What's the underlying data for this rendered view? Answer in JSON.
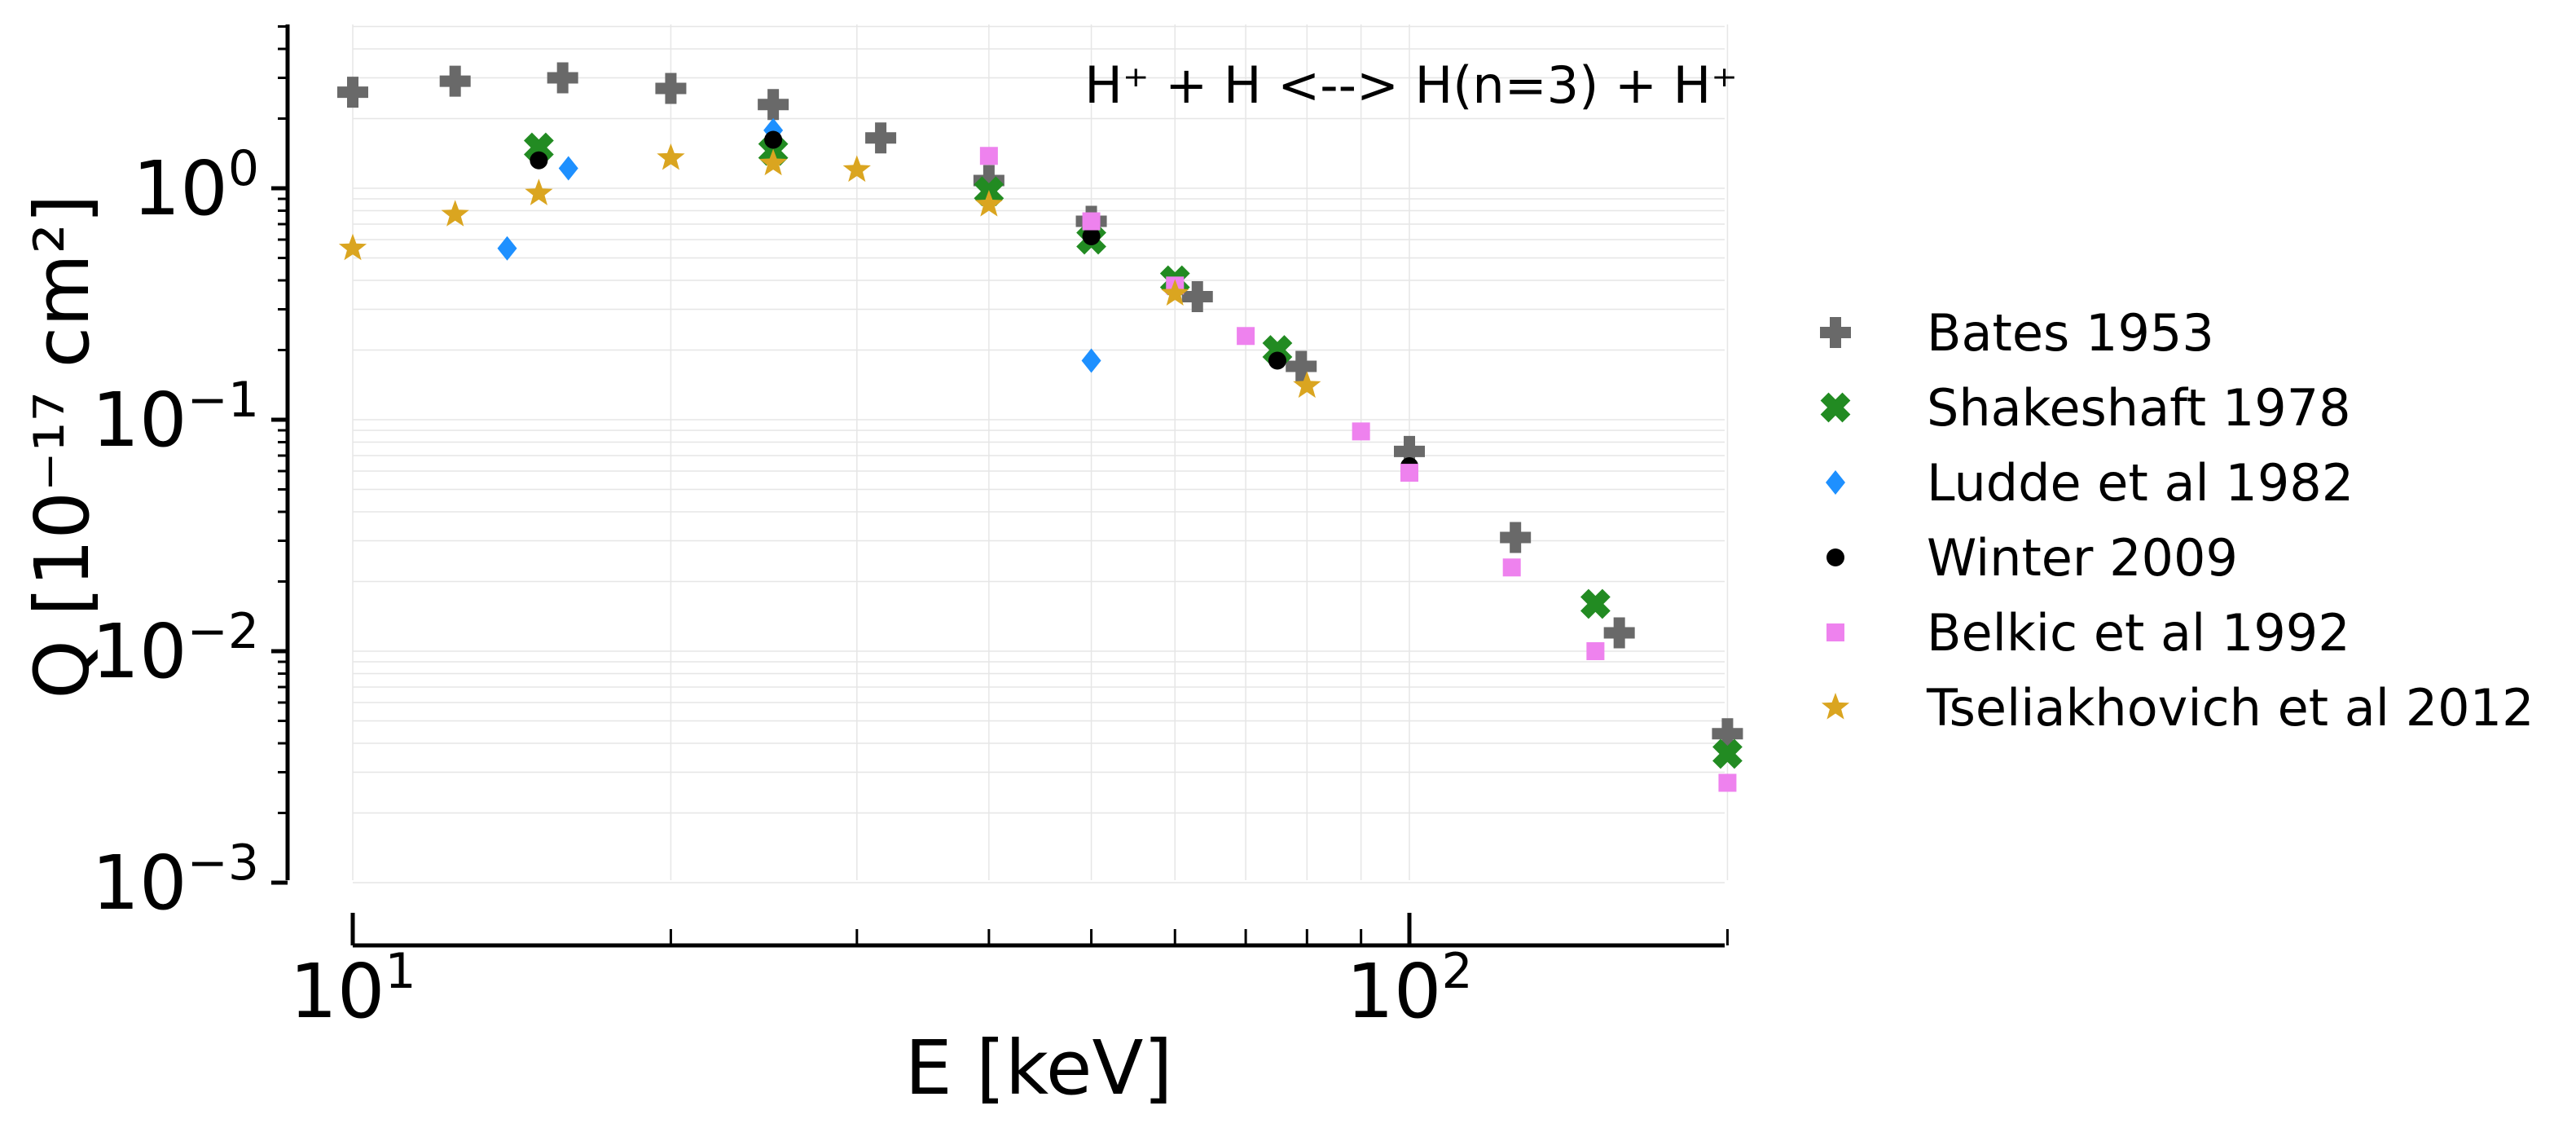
{
  "chart_data": {
    "type": "scatter",
    "title": "H⁺ + H <--> H(n=3) + H⁺",
    "xlabel": "E [keV]",
    "ylabel": "Q [10⁻¹⁷ cm²]",
    "xscale": "log",
    "yscale": "log",
    "xlim": [
      10,
      200
    ],
    "ylim": [
      0.001,
      5
    ],
    "grid": true,
    "legend_position": "right, outside plot",
    "x_ticks": [
      {
        "value": 10,
        "base": "10",
        "exp": "1"
      },
      {
        "value": 100,
        "base": "10",
        "exp": "2"
      }
    ],
    "y_ticks": [
      {
        "value": 1,
        "base": "10",
        "exp": "0"
      },
      {
        "value": 0.1,
        "base": "10",
        "exp": "−1"
      },
      {
        "value": 0.01,
        "base": "10",
        "exp": "−2"
      },
      {
        "value": 0.001,
        "base": "10",
        "exp": "−3"
      }
    ],
    "series": [
      {
        "name": "Bates 1953",
        "marker": "plus",
        "color": "#696969",
        "x": [
          10,
          12.5,
          15.8,
          20,
          25,
          31.6,
          40,
          50,
          63,
          79,
          100,
          126,
          158,
          200
        ],
        "y": [
          2.6,
          2.9,
          3.0,
          2.7,
          2.3,
          1.65,
          1.08,
          0.72,
          0.34,
          0.17,
          0.073,
          0.031,
          0.012,
          0.0044
        ]
      },
      {
        "name": "Shakeshaft 1978",
        "marker": "x",
        "color": "#228b22",
        "x": [
          15,
          25,
          40,
          50,
          60,
          75,
          150,
          200
        ],
        "y": [
          1.5,
          1.45,
          0.97,
          0.6,
          0.4,
          0.2,
          0.016,
          0.0036
        ]
      },
      {
        "name": "Ludde et al 1982",
        "marker": "diamond",
        "color": "#1e90ff",
        "x": [
          14,
          16,
          25,
          50
        ],
        "y": [
          0.55,
          1.22,
          1.78,
          0.18
        ]
      },
      {
        "name": "Winter 2009",
        "marker": "circle",
        "color": "#000000",
        "x": [
          15,
          25,
          50,
          75,
          100
        ],
        "y": [
          1.32,
          1.62,
          0.62,
          0.18,
          0.063
        ]
      },
      {
        "name": "Belkic et al 1992",
        "marker": "square",
        "color": "#ee82ee",
        "x": [
          40,
          50,
          60,
          70,
          90,
          100,
          125,
          150,
          200
        ],
        "y": [
          1.38,
          0.72,
          0.38,
          0.23,
          0.089,
          0.059,
          0.023,
          0.01,
          0.0027
        ]
      },
      {
        "name": "Tseliakhovich et al 2012",
        "marker": "star",
        "color": "#daa520",
        "x": [
          10,
          12.5,
          15,
          20,
          25,
          30,
          40,
          60,
          80
        ],
        "y": [
          0.55,
          0.77,
          0.95,
          1.35,
          1.28,
          1.2,
          0.85,
          0.35,
          0.14
        ]
      }
    ]
  }
}
